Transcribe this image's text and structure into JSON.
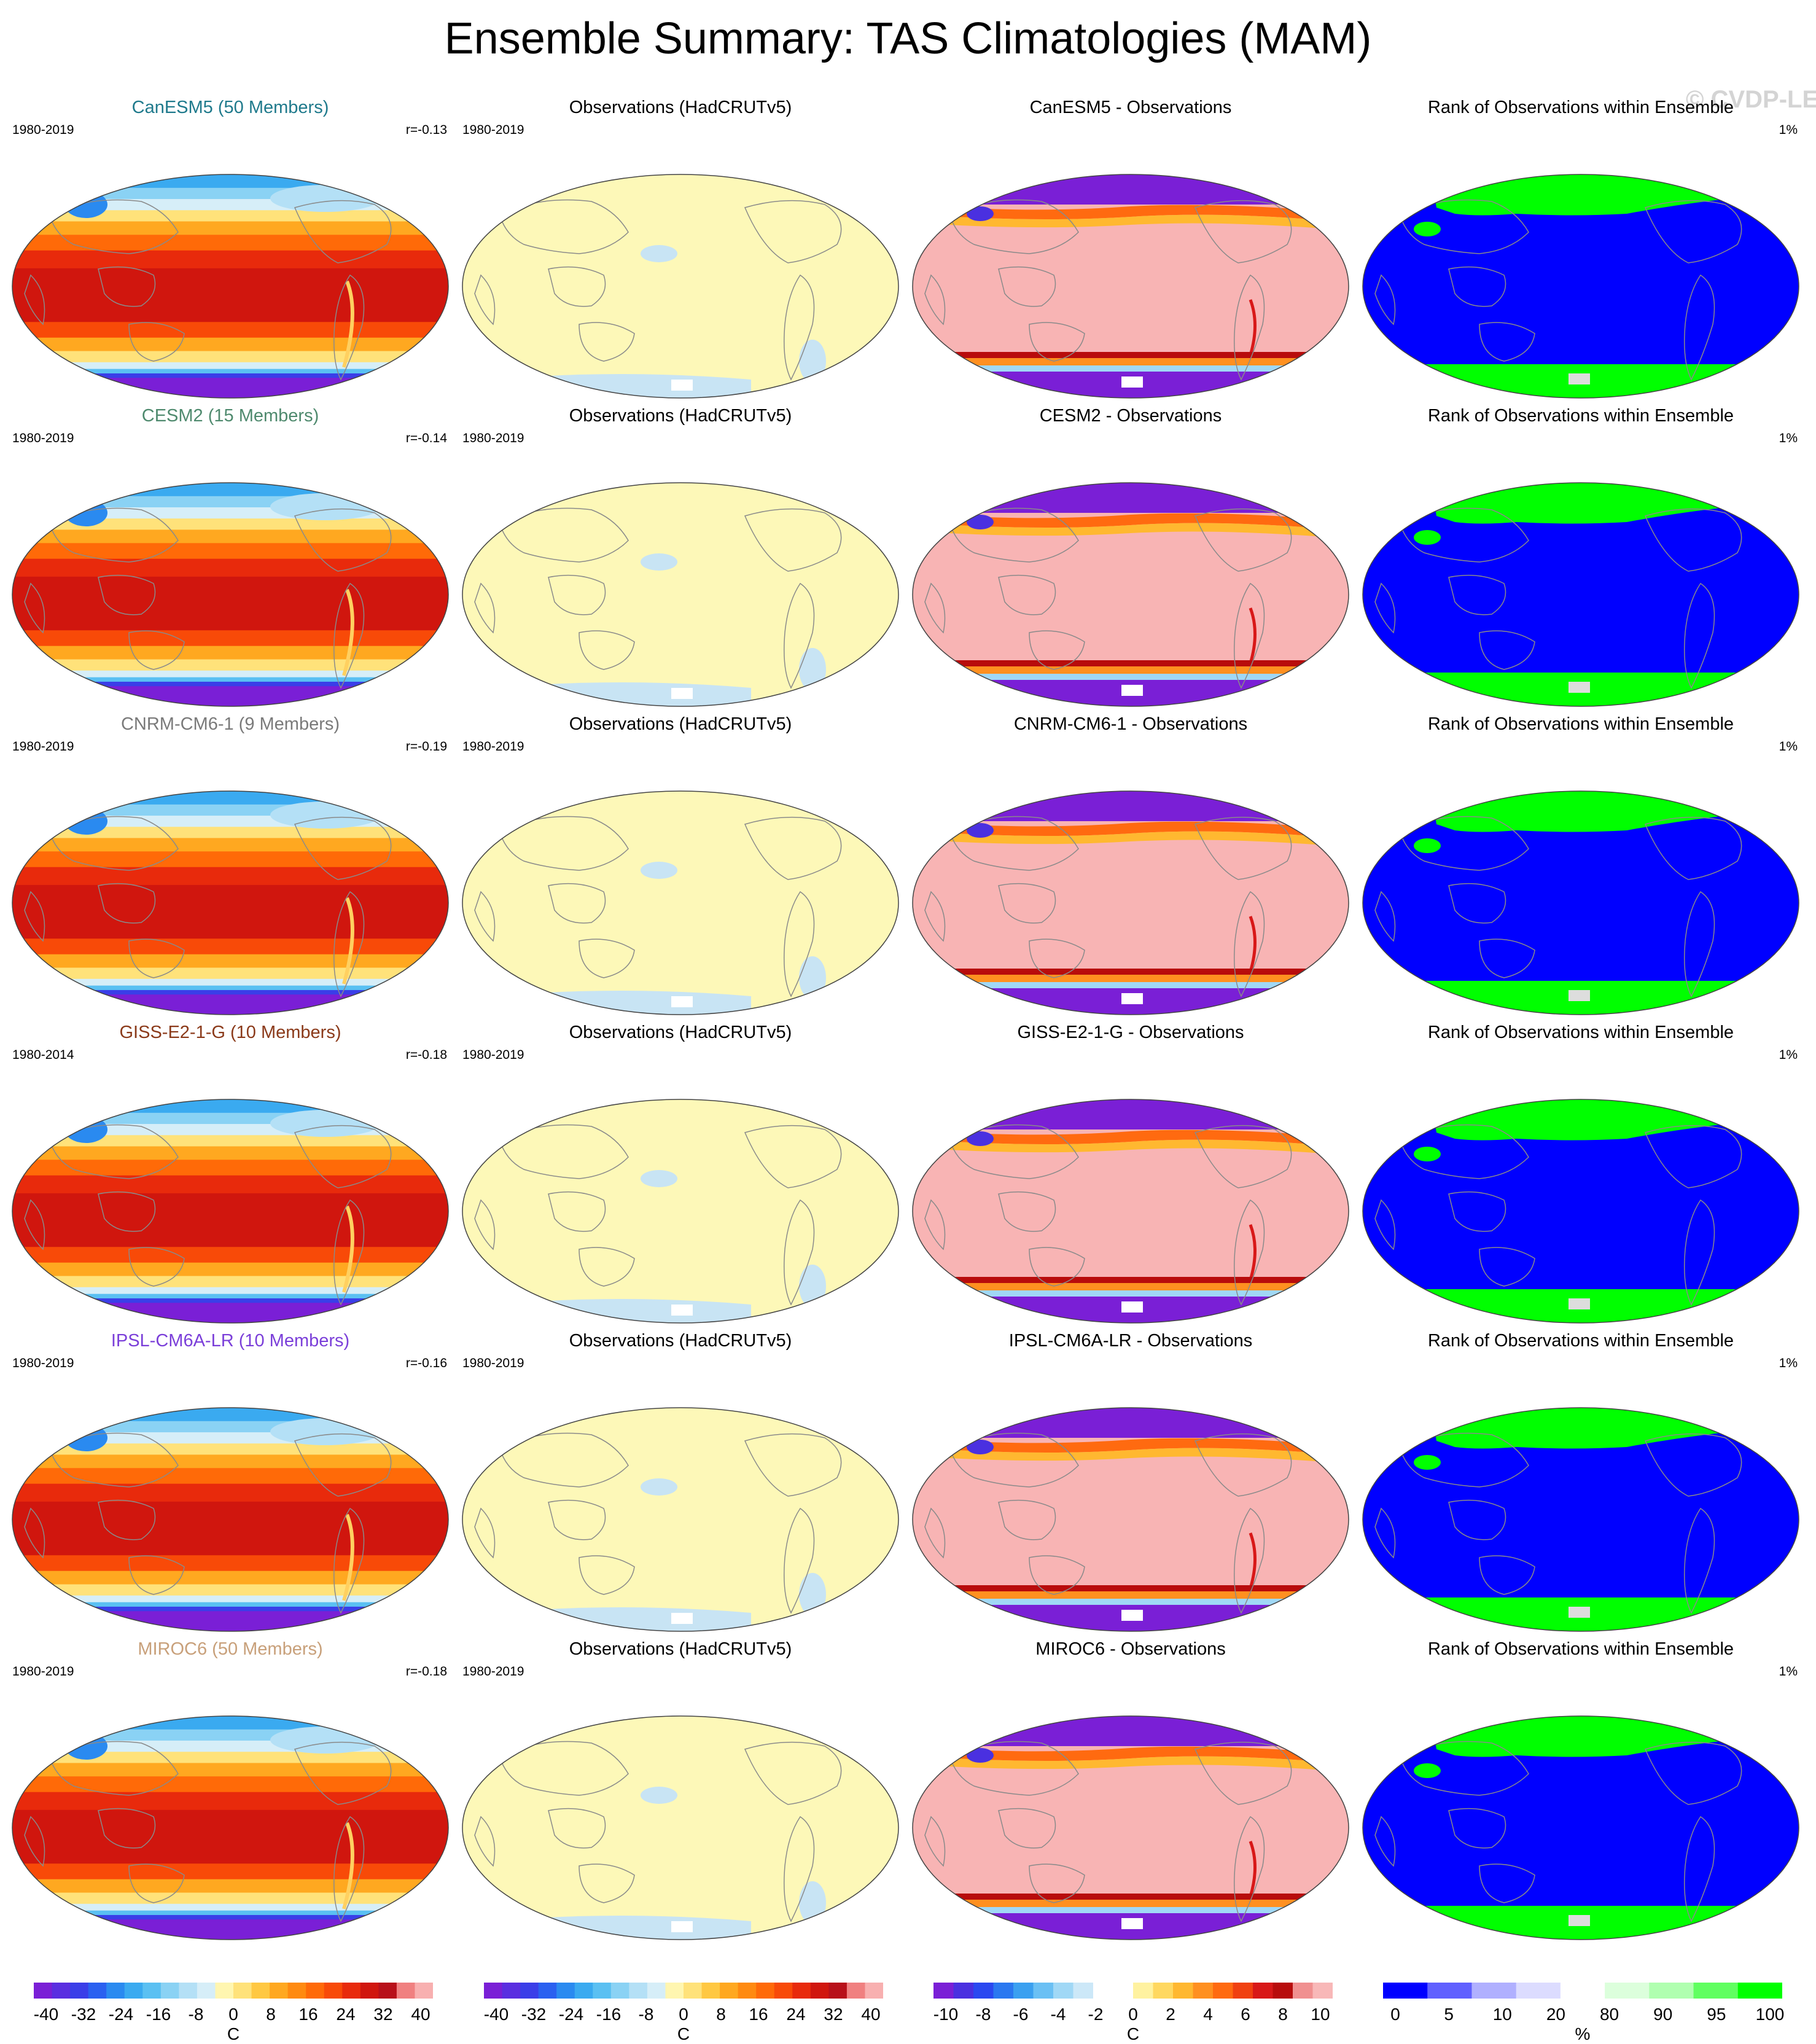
{
  "title": "Ensemble Summary: TAS Climatologies (MAM)",
  "watermark": "© CVDP-LE",
  "obs_panel_title": "Observations (HadCRUTv5)",
  "obs_period": "1980-2019",
  "rank_panel_title": "Rank of Observations within Ensemble",
  "rank_percent": "1%",
  "rows": [
    {
      "model_title": "CanESM5 (50 Members)",
      "model_color": "#1f7a8c",
      "period": "1980-2019",
      "r": "r=-0.13",
      "diff_title": "CanESM5 - Observations"
    },
    {
      "model_title": "CESM2 (15 Members)",
      "model_color": "#4f8a6e",
      "period": "1980-2019",
      "r": "r=-0.14",
      "diff_title": "CESM2 - Observations"
    },
    {
      "model_title": "CNRM-CM6-1 (9 Members)",
      "model_color": "#7a7a7a",
      "period": "1980-2019",
      "r": "r=-0.19",
      "diff_title": "CNRM-CM6-1 - Observations"
    },
    {
      "model_title": "GISS-E2-1-G (10 Members)",
      "model_color": "#8b3a1a",
      "period": "1980-2014",
      "r": "r=-0.18",
      "diff_title": "GISS-E2-1-G - Observations"
    },
    {
      "model_title": "IPSL-CM6A-LR (10 Members)",
      "model_color": "#7b3fd9",
      "period": "1980-2019",
      "r": "r=-0.16",
      "diff_title": "IPSL-CM6A-LR - Observations"
    },
    {
      "model_title": "MIROC6 (50 Members)",
      "model_color": "#c8a07a",
      "period": "1980-2019",
      "r": "r=-0.18",
      "diff_title": "MIROC6 - Observations"
    }
  ],
  "colorbars": [
    {
      "ticks": [
        "-40",
        "-32",
        "-24",
        "-16",
        "-8",
        "0",
        "8",
        "16",
        "24",
        "32",
        "40"
      ],
      "unit": "C"
    },
    {
      "ticks": [
        "-40",
        "-32",
        "-24",
        "-16",
        "-8",
        "0",
        "8",
        "16",
        "24",
        "32",
        "40"
      ],
      "unit": "C"
    },
    {
      "ticks": [
        "-10",
        "-8",
        "-6",
        "-4",
        "-2",
        "0",
        "2",
        "4",
        "6",
        "8",
        "10"
      ],
      "unit": "C"
    },
    {
      "ticks": [
        "0",
        "5",
        "10",
        "20",
        "80",
        "90",
        "95",
        "100"
      ],
      "unit": "%"
    }
  ],
  "colors": {
    "temp_scale": [
      "#7a1fd6",
      "#5a2ee0",
      "#3a3ee8",
      "#2a60f0",
      "#2a8af0",
      "#3aaaf0",
      "#5ac0f2",
      "#8ad2f4",
      "#b4e0f6",
      "#d6eef8",
      "#fff6b0",
      "#ffe27a",
      "#ffc842",
      "#ffa820",
      "#ff8a10",
      "#ff6a08",
      "#f84a08",
      "#e82a0c",
      "#d0160e",
      "#b8101a",
      "#f08080",
      "#f8b0b0"
    ],
    "diff_scale": [
      "#7a1fd6",
      "#4a30e0",
      "#2a48f0",
      "#2a78f0",
      "#3aa0f0",
      "#6ac0f4",
      "#a0d8f6",
      "#cce8f8",
      "#ffffff",
      "#ffffff",
      "#fff2a0",
      "#ffd860",
      "#ffb830",
      "#ff9020",
      "#ff6a10",
      "#f04010",
      "#d81818",
      "#b80c0c",
      "#f09090",
      "#f8b8b8"
    ],
    "rank_scale": [
      "#0000ff",
      "#6060ff",
      "#b0b0ff",
      "#dcdcff",
      "#ffffff",
      "#dcffdc",
      "#b0ffb0",
      "#60ff60",
      "#00ff00"
    ],
    "obs_fill": "#fdf8b8",
    "obs_cold": "#c8e4f4",
    "diff_fill": "#f8b4b4",
    "rank_fill": "#0000ff",
    "rank_high": "#00ff00",
    "coast": "#8a8a8a"
  }
}
